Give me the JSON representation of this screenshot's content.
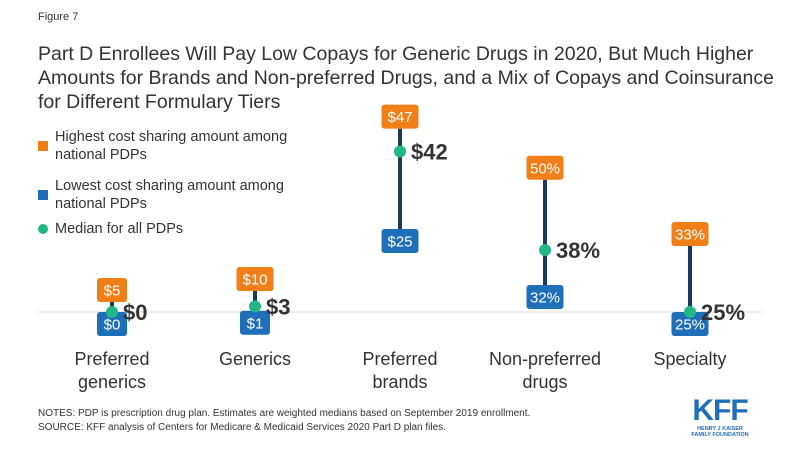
{
  "figure_label": "Figure 7",
  "chart_data": {
    "type": "range",
    "title": "Part D Enrollees Will Pay Low Copays for Generic Drugs in 2020, But Much Higher Amounts for Brands and Non-preferred Drugs, and a Mix of Copays and Coinsurance for Different Formulary Tiers",
    "legend": [
      {
        "key": "high",
        "label": "Highest cost sharing amount among national PDPs",
        "color": "#f07f1a",
        "marker": "square"
      },
      {
        "key": "low",
        "label": "Lowest cost sharing amount among national PDPs",
        "color": "#1f6eb8",
        "marker": "square"
      },
      {
        "key": "median",
        "label": "Median for all PDPs",
        "color": "#22b884",
        "marker": "dot"
      }
    ],
    "categories": [
      {
        "label": [
          "Preferred",
          "generics"
        ],
        "unit": "$",
        "low": 0,
        "high": 5,
        "median": 0,
        "low_label": "$0",
        "high_label": "$5",
        "median_label": "$0"
      },
      {
        "label": [
          "Generics"
        ],
        "unit": "$",
        "low": 1,
        "high": 10,
        "median": 3,
        "low_label": "$1",
        "high_label": "$10",
        "median_label": "$3"
      },
      {
        "label": [
          "Preferred",
          "brands"
        ],
        "unit": "$",
        "low": 25,
        "high": 47,
        "median": 42,
        "low_label": "$25",
        "high_label": "$47",
        "median_label": "$42"
      },
      {
        "label": [
          "Non-preferred",
          "drugs"
        ],
        "unit": "%",
        "low": 32,
        "high": 50,
        "median": 38,
        "low_label": "32%",
        "high_label": "50%",
        "median_label": "38%"
      },
      {
        "label": [
          "Specialty"
        ],
        "unit": "%",
        "low": 25,
        "high": 33,
        "median": 25,
        "low_label": "25%",
        "high_label": "33%",
        "median_label": "25%"
      }
    ],
    "line_color": "#1b3a5c",
    "baseline_color": "#d9d9d9"
  },
  "notes": [
    "NOTES: PDP is prescription drug plan. Estimates are weighted medians based on September 2019 enrollment.",
    "SOURCE: KFF analysis of Centers for Medicare & Medicaid Services 2020 Part D plan files."
  ],
  "logo": {
    "main": "KFF",
    "sub": [
      "HENRY J KAISER",
      "FAMILY FOUNDATION"
    ]
  }
}
